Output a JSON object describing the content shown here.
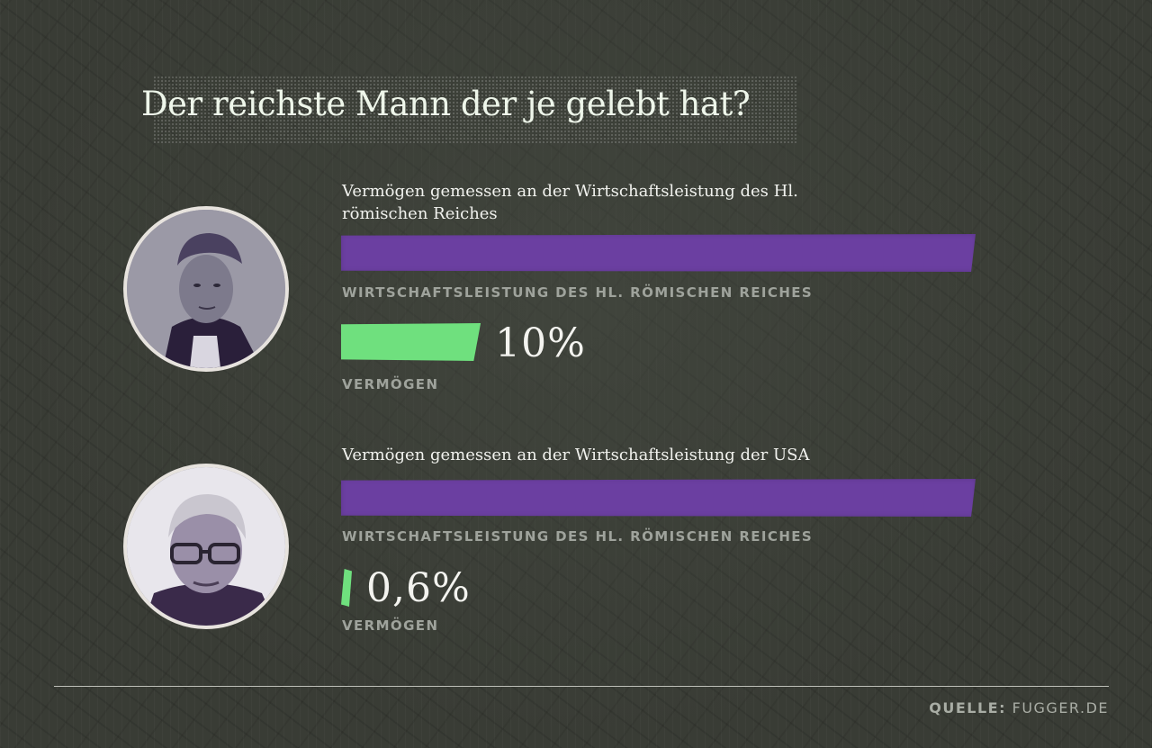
{
  "title": "Der reichste Mann der je gelebt hat?",
  "colors": {
    "economy_bar": "#6b3fa1",
    "wealth_bar": "#6fe07e",
    "background": "#393c35"
  },
  "source": {
    "label": "QUELLE:",
    "value": "FUGGER.DE"
  },
  "chart_data": [
    {
      "type": "bar",
      "title": "Vermögen gemessen an der Wirtschaftsleistung des Hl. römischen Reiches",
      "categories": [
        "WIRTSCHAFTSLEISTUNG DES HL. RÖMISCHEN REICHES",
        "VERMÖGEN"
      ],
      "values": [
        100,
        10
      ],
      "value_label": "10%",
      "unit": "%"
    },
    {
      "type": "bar",
      "title": "Vermögen gemessen an der Wirtschaftsleistung der USA",
      "categories": [
        "WIRTSCHAFTSLEISTUNG DES HL. RÖMISCHEN REICHES",
        "VERMÖGEN"
      ],
      "values": [
        100,
        0.6
      ],
      "value_label": "0,6%",
      "unit": "%"
    }
  ]
}
